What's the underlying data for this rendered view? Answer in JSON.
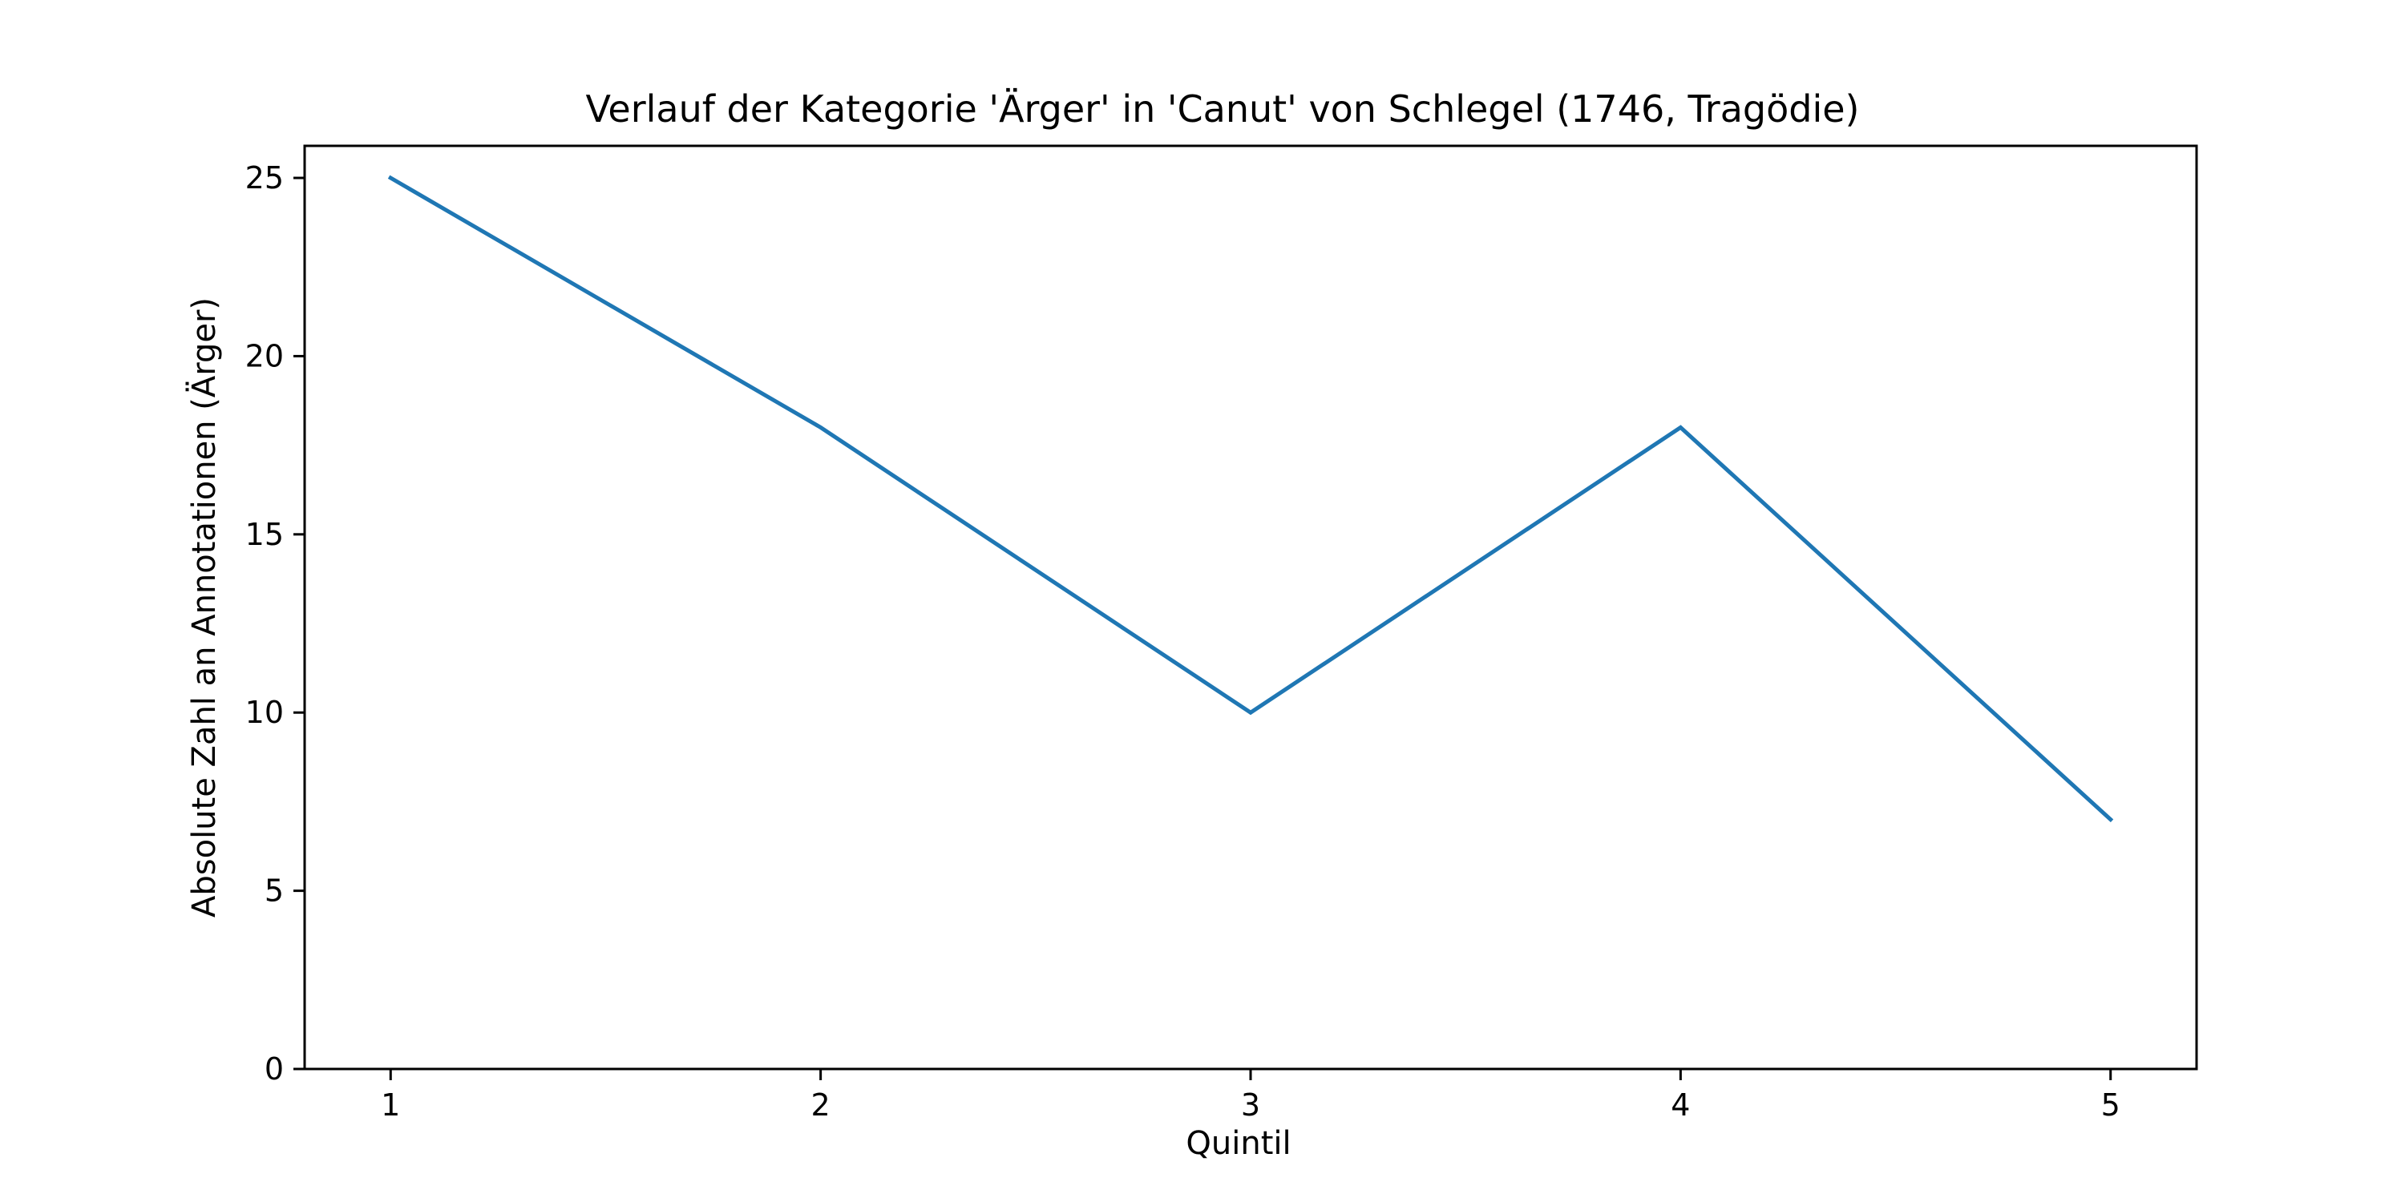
{
  "chart_data": {
    "type": "line",
    "title": "Verlauf der Kategorie 'Ärger' in 'Canut' von Schlegel (1746, Tragödie)",
    "xlabel": "Quintil",
    "ylabel": "Absolute Zahl an Annotationen (Ärger)",
    "x": [
      1,
      2,
      3,
      4,
      5
    ],
    "series": [
      {
        "values": [
          25,
          18,
          10,
          18,
          7
        ],
        "color": "#1f77b4"
      }
    ],
    "xlim": [
      0.8,
      5.2
    ],
    "ylim": [
      0,
      25.9
    ],
    "xticks": [
      1,
      2,
      3,
      4,
      5
    ],
    "yticks": [
      0,
      5,
      10,
      15,
      20,
      25
    ],
    "grid": false,
    "legend": "none"
  }
}
